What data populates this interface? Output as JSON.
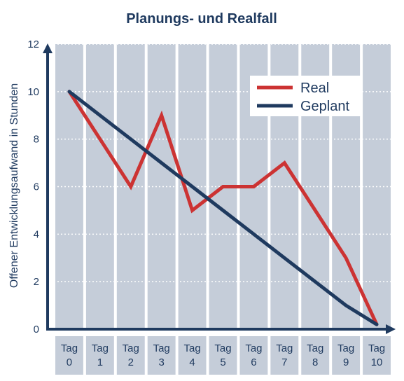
{
  "chart_data": {
    "type": "line",
    "title": "Planungs- und Realfall",
    "ylabel": "Offener Entwicklungsaufwand in Stunden",
    "ylim": [
      0,
      12
    ],
    "yticks": [
      "0",
      "2",
      "4",
      "6",
      "8",
      "10",
      "12"
    ],
    "categories": [
      [
        "Tag",
        "0"
      ],
      [
        "Tag",
        "1"
      ],
      [
        "Tag",
        "2"
      ],
      [
        "Tag",
        "3"
      ],
      [
        "Tag",
        "4"
      ],
      [
        "Tag",
        "5"
      ],
      [
        "Tag",
        "6"
      ],
      [
        "Tag",
        "7"
      ],
      [
        "Tag",
        "8"
      ],
      [
        "Tag",
        "9"
      ],
      [
        "Tag",
        "10"
      ]
    ],
    "series": [
      {
        "name": "Real",
        "color": "#cc3333",
        "values": [
          10,
          8,
          6,
          9,
          5,
          6,
          6,
          7,
          5,
          3,
          0.2
        ]
      },
      {
        "name": "Geplant",
        "color": "#1f3a5f",
        "values": [
          10,
          9,
          8,
          7,
          6,
          5,
          4,
          3,
          2,
          1,
          0.2
        ]
      }
    ],
    "grid": true,
    "legend_position": "top-right"
  },
  "colors": {
    "axis": "#1f3a5f",
    "plot_bg": "#c5cdd9",
    "category_bg": "#c5cdd9",
    "grid": "#ffffff"
  }
}
